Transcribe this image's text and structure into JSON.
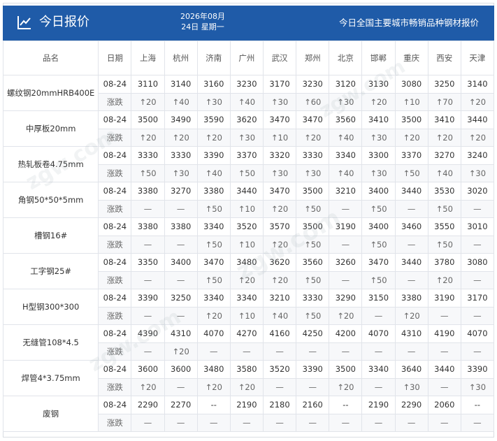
{
  "header": {
    "title": "今日报价",
    "date_line1": "2026年08月",
    "date_line2": "24日 星期一",
    "subtitle": "今日全国主要城市畅销品种钢材报价"
  },
  "columns": {
    "name": "品名",
    "date": "日期",
    "cities": [
      "上海",
      "杭州",
      "济南",
      "广州",
      "武汉",
      "郑州",
      "北京",
      "邯郸",
      "重庆",
      "西安",
      "天津"
    ]
  },
  "products": [
    {
      "name": "螺纹钢20mmHRB400E",
      "date": "08-24",
      "change_label": "涨跌",
      "prices": [
        "3110",
        "3140",
        "3160",
        "3230",
        "3170",
        "3230",
        "3120",
        "3130",
        "3080",
        "3250",
        "3140"
      ],
      "changes": [
        "↑20",
        "↑40",
        "↑30",
        "↑40",
        "↑30",
        "↑60",
        "↑30",
        "↑20",
        "↑10",
        "↑70",
        "↑20"
      ]
    },
    {
      "name": "中厚板20mm",
      "date": "08-24",
      "change_label": "涨跌",
      "prices": [
        "3500",
        "3490",
        "3590",
        "3620",
        "3470",
        "3470",
        "3560",
        "3410",
        "3500",
        "3410",
        "3440"
      ],
      "changes": [
        "↑20",
        "↑20",
        "↑20",
        "↑30",
        "↑10",
        "↑20",
        "↑40",
        "↑30",
        "↑20",
        "↑20",
        "↑20"
      ]
    },
    {
      "name": "热轧板卷4.75mm",
      "date": "08-24",
      "change_label": "涨跌",
      "prices": [
        "3330",
        "3330",
        "3390",
        "3370",
        "3320",
        "3330",
        "3340",
        "3300",
        "3370",
        "3270",
        "3240"
      ],
      "changes": [
        "↑50",
        "↑30",
        "↑40",
        "↑50",
        "↑30",
        "↑30",
        "↑40",
        "↑30",
        "↑50",
        "↑40",
        "↑30"
      ]
    },
    {
      "name": "角钢50*50*5mm",
      "date": "08-24",
      "change_label": "涨跌",
      "prices": [
        "3380",
        "3270",
        "3380",
        "3440",
        "3470",
        "3500",
        "3210",
        "3400",
        "3440",
        "3530",
        "3020"
      ],
      "changes": [
        "—",
        "—",
        "↑50",
        "↑10",
        "↑20",
        "↑50",
        "—",
        "↑50",
        "—",
        "↑50",
        "—"
      ]
    },
    {
      "name": "槽钢16#",
      "date": "08-24",
      "change_label": "涨跌",
      "prices": [
        "3380",
        "3380",
        "3340",
        "3520",
        "3570",
        "3500",
        "3190",
        "3400",
        "3460",
        "3550",
        "3010"
      ],
      "changes": [
        "—",
        "—",
        "↑50",
        "↑10",
        "↑20",
        "↑50",
        "—",
        "↑50",
        "—",
        "↑50",
        "—"
      ]
    },
    {
      "name": "工字钢25#",
      "date": "08-24",
      "change_label": "涨跌",
      "prices": [
        "3350",
        "3400",
        "3470",
        "3480",
        "3620",
        "3560",
        "3260",
        "3470",
        "3440",
        "3780",
        "3080"
      ],
      "changes": [
        "—",
        "—",
        "↑50",
        "↑20",
        "↑20",
        "↑50",
        "—",
        "↑50",
        "—",
        "↑20",
        "—"
      ]
    },
    {
      "name": "H型钢300*300",
      "date": "08-24",
      "change_label": "涨跌",
      "prices": [
        "3390",
        "3250",
        "3340",
        "3340",
        "3210",
        "3330",
        "3290",
        "3150",
        "3380",
        "3190",
        "3170"
      ],
      "changes": [
        "—",
        "—",
        "↑20",
        "↑10",
        "↑40",
        "↑50",
        "↑20",
        "—",
        "↑20",
        "—",
        "—"
      ]
    },
    {
      "name": "无缝管108*4.5",
      "date": "08-24",
      "change_label": "涨跌",
      "prices": [
        "4390",
        "4310",
        "4070",
        "4270",
        "4160",
        "4250",
        "4200",
        "4070",
        "4310",
        "4190",
        "4070"
      ],
      "changes": [
        "—",
        "↑20",
        "—",
        "—",
        "—",
        "—",
        "—",
        "—",
        "—",
        "—",
        "—"
      ]
    },
    {
      "name": "焊管4*3.75mm",
      "date": "08-24",
      "change_label": "涨跌",
      "prices": [
        "3600",
        "3600",
        "3480",
        "3580",
        "3520",
        "3390",
        "3500",
        "3340",
        "3640",
        "3440",
        "3390"
      ],
      "changes": [
        "↑20",
        "—",
        "↑20",
        "↑20",
        "—",
        "—",
        "↑20",
        "—",
        "↑30",
        "—",
        "↑30"
      ]
    },
    {
      "name": "废钢",
      "date": "08-24",
      "change_label": "涨跌",
      "prices": [
        "2290",
        "2270",
        "--",
        "2190",
        "2180",
        "2160",
        "--",
        "2190",
        "2290",
        "2060",
        "--"
      ],
      "changes": [
        "—",
        "—",
        "—",
        "—",
        "—",
        "—",
        "—",
        "—",
        "—",
        "—",
        "—"
      ]
    }
  ],
  "colors": {
    "header_bg": "#1f5ba8",
    "rise": "#e0201f",
    "border": "#e1e4ea"
  },
  "icons": {
    "header": "line-chart-icon",
    "rise": "up-arrow-icon"
  }
}
